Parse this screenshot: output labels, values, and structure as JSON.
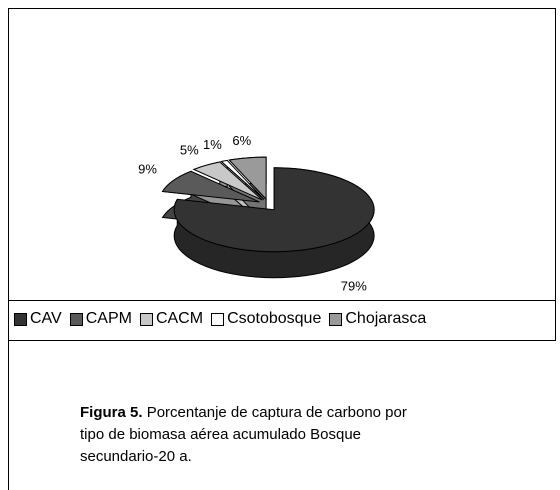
{
  "chart_data": {
    "type": "pie3d",
    "categories": [
      "CAV",
      "CAPM",
      "CACM",
      "Csotobosque",
      "Chojarasca"
    ],
    "values": [
      79,
      9,
      5,
      1,
      6
    ],
    "value_labels": [
      "79%",
      "9%",
      "5%",
      "1%",
      "6%"
    ],
    "colors": [
      "#333333",
      "#5a5a5a",
      "#c8c8c8",
      "#ffffff",
      "#9a9a9a"
    ],
    "legend": "bottom"
  },
  "caption": {
    "label": "Figura 5.",
    "text": "Porcentanje de captura de carbono por tipo de biomasa aérea acumulado Bosque secundario-20 a."
  }
}
